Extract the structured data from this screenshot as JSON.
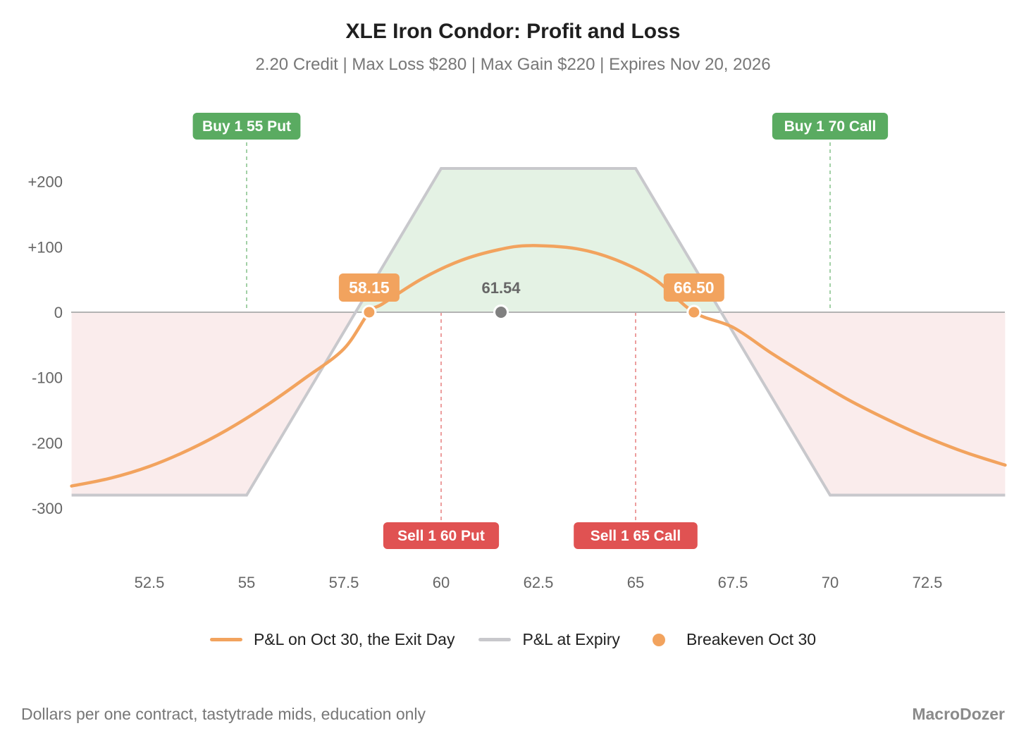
{
  "chart_data": {
    "type": "line",
    "title": "XLE Iron Condor: Profit and Loss",
    "subtitle": "2.20 Credit | Max Loss $280 | Max Gain $220 | Expires Nov 20, 2026",
    "xlim": [
      50.5,
      74.5
    ],
    "ylim": [
      -320,
      260
    ],
    "x_ticks": [
      52.5,
      55,
      57.5,
      60,
      62.5,
      65,
      67.5,
      70,
      72.5
    ],
    "x_tick_labels": [
      "52.5",
      "55",
      "57.5",
      "60",
      "62.5",
      "65",
      "67.5",
      "70",
      "72.5"
    ],
    "y_ticks": [
      200,
      100,
      0,
      -100,
      -200,
      -300
    ],
    "y_tick_labels": [
      "+200",
      "+100",
      "0",
      "-100",
      "-200",
      "-300"
    ],
    "grid": false,
    "legend_position": "bottom",
    "series": [
      {
        "name": "P&L on Oct 30, the Exit Day",
        "color": "#f2a35e",
        "x": [
          50.5,
          51.5,
          52.5,
          53.5,
          54.5,
          55.5,
          56.5,
          57.5,
          58.15,
          58.5,
          59.5,
          60.5,
          61.5,
          62.3,
          63.5,
          64.5,
          65.5,
          66.5,
          67.5,
          68.5,
          69.5,
          70.5,
          71.5,
          72.5,
          73.5,
          74.5
        ],
        "y": [
          -266,
          -254,
          -236,
          -211,
          -180,
          -143,
          -101,
          -56,
          0,
          13,
          51,
          79,
          96,
          102,
          97,
          80,
          50,
          0,
          -23,
          -63,
          -100,
          -135,
          -165,
          -192,
          -215,
          -234
        ]
      },
      {
        "name": "P&L at Expiry",
        "color": "#c8c8cc",
        "x": [
          50.5,
          55,
          60,
          65,
          70,
          74.5
        ],
        "y": [
          -280,
          -280,
          220,
          220,
          -280,
          -280
        ]
      }
    ],
    "breakeven_legend": "Breakeven Oct 30",
    "breakeven_color": "#f2a35e",
    "breakevens": [
      {
        "x": 58.15,
        "label": "58.15"
      },
      {
        "x": 66.5,
        "label": "66.50"
      }
    ],
    "current_price": {
      "x": 61.54,
      "label": "61.54",
      "color": "#808080"
    },
    "legs": [
      {
        "action": "Buy 1",
        "contract": "55 Put",
        "strike": 55,
        "color": "#5aab61",
        "position": "top"
      },
      {
        "action": "Sell 1",
        "contract": "60 Put",
        "strike": 60,
        "color": "#e05252",
        "position": "bottom"
      },
      {
        "action": "Sell 1",
        "contract": "65 Call",
        "strike": 65,
        "color": "#e05252",
        "position": "bottom"
      },
      {
        "action": "Buy 1",
        "contract": "70 Call",
        "strike": 70,
        "color": "#5aab61",
        "position": "top"
      }
    ],
    "profit_fill_color": "#e4f2e4",
    "loss_fill_color": "#faecec"
  },
  "footer": {
    "note": "Dollars per one contract, tastytrade mids, education only",
    "brand": "MacroDozer"
  }
}
